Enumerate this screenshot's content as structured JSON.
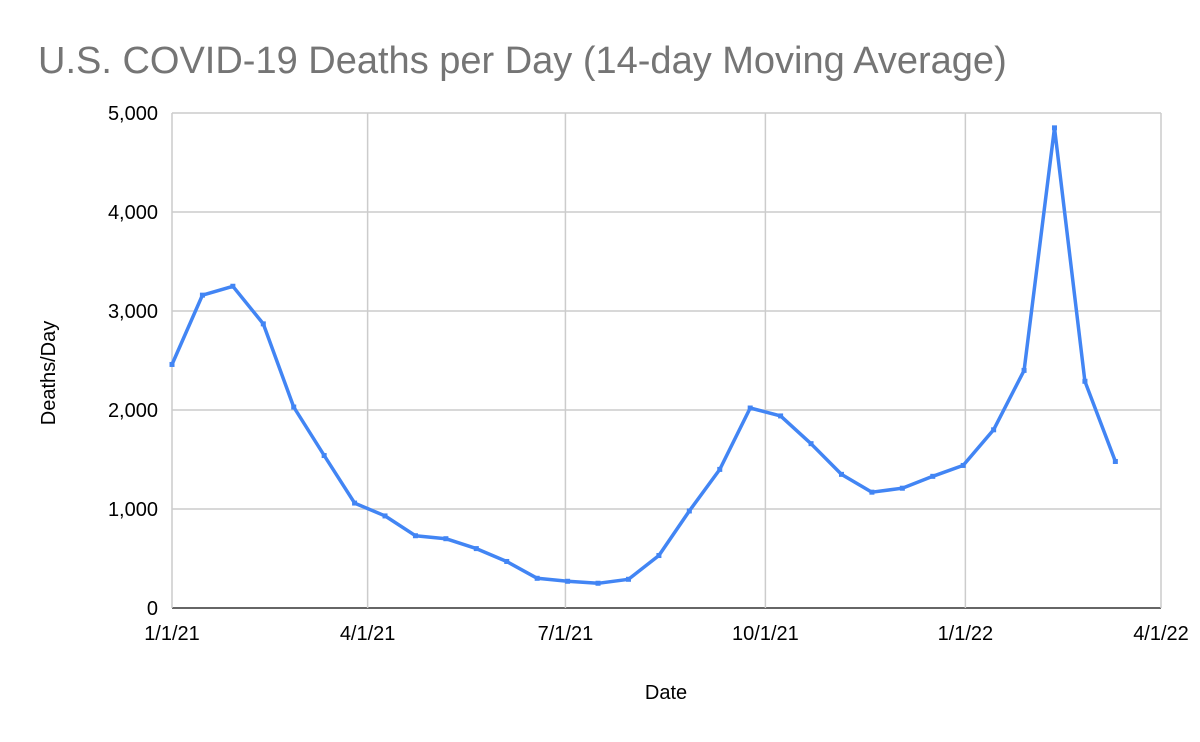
{
  "chart_data": {
    "type": "line",
    "title": "U.S. COVID-19 Deaths per Day (14-day Moving Average)",
    "xlabel": "Date",
    "ylabel": "Deaths/Day",
    "ylim": [
      0,
      5000
    ],
    "y_ticks": [
      0,
      1000,
      2000,
      3000,
      4000,
      5000
    ],
    "y_tick_labels": [
      "0",
      "1,000",
      "2,000",
      "3,000",
      "4,000",
      "5,000"
    ],
    "x_ticks": [
      "2021-01-01",
      "2021-04-01",
      "2021-07-01",
      "2021-10-01",
      "2022-01-01",
      "2022-04-01"
    ],
    "x_tick_labels": [
      "1/1/21",
      "4/1/21",
      "7/1/21",
      "10/1/21",
      "1/1/22",
      "4/1/22"
    ],
    "xlim": [
      "2021-01-01",
      "2022-04-01"
    ],
    "grid": true,
    "legend": "none",
    "series_color": "#4285f4",
    "series": [
      {
        "name": "Deaths/Day",
        "x": [
          "2021-01-01",
          "2021-01-15",
          "2021-01-29",
          "2021-02-12",
          "2021-02-26",
          "2021-03-12",
          "2021-03-26",
          "2021-04-09",
          "2021-04-23",
          "2021-05-07",
          "2021-05-21",
          "2021-06-04",
          "2021-06-18",
          "2021-07-02",
          "2021-07-16",
          "2021-07-30",
          "2021-08-13",
          "2021-08-27",
          "2021-09-10",
          "2021-09-24",
          "2021-10-08",
          "2021-10-22",
          "2021-11-05",
          "2021-11-19",
          "2021-12-03",
          "2021-12-17",
          "2021-12-31",
          "2022-01-14",
          "2022-01-28",
          "2022-02-11",
          "2022-02-25",
          "2022-03-11"
        ],
        "values": [
          2460,
          3160,
          3250,
          2870,
          2030,
          1540,
          1060,
          930,
          730,
          700,
          600,
          470,
          300,
          270,
          250,
          290,
          530,
          980,
          1400,
          2020,
          1940,
          1660,
          1350,
          1170,
          1210,
          1330,
          1440,
          1800,
          2400,
          4850,
          2290,
          1480
        ]
      }
    ]
  }
}
